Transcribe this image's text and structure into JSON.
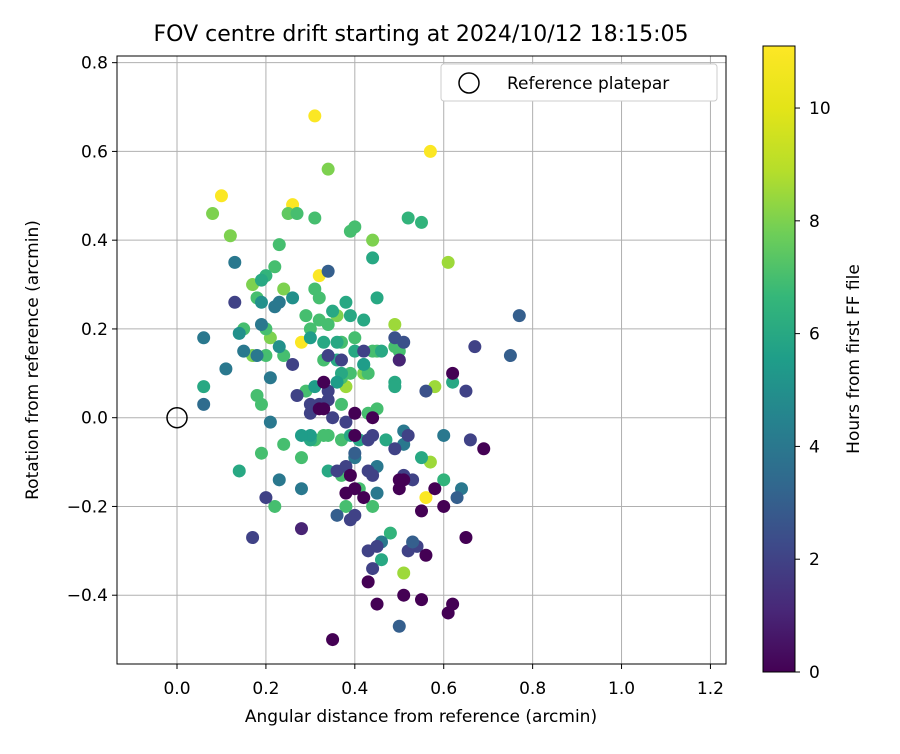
{
  "chart_data": {
    "type": "scatter",
    "title": "FOV centre drift starting at 2024/10/12 18:15:05",
    "xlabel": "Angular distance from reference (arcmin)",
    "ylabel": "Rotation from reference (arcmin)",
    "xlim": [
      -0.135,
      1.235
    ],
    "ylim": [
      -0.555,
      0.815
    ],
    "xticks": [
      0.0,
      0.2,
      0.4,
      0.6,
      0.8,
      1.0,
      1.2
    ],
    "xtick_labels": [
      "0.0",
      "0.2",
      "0.4",
      "0.6",
      "0.8",
      "1.0",
      "1.2"
    ],
    "yticks": [
      -0.4,
      -0.2,
      0.0,
      0.2,
      0.4,
      0.6,
      0.8
    ],
    "ytick_labels": [
      "−0.4",
      "−0.2",
      "0.0",
      "0.2",
      "0.4",
      "0.6",
      "0.8"
    ],
    "grid": true,
    "legend": {
      "position": "top-right",
      "entries": [
        "Reference platepar"
      ]
    },
    "reference_point": {
      "x": 0.0,
      "y": 0.0
    },
    "colorbar": {
      "label": "Hours from first FF file",
      "range": [
        0,
        11.1
      ],
      "ticks": [
        0,
        2,
        4,
        6,
        8,
        10
      ],
      "tick_labels": [
        "0",
        "2",
        "4",
        "6",
        "8",
        "10"
      ],
      "colormap": "viridis"
    },
    "points": [
      [
        0.31,
        0.68,
        11
      ],
      [
        0.57,
        0.6,
        11
      ],
      [
        0.1,
        0.5,
        11
      ],
      [
        0.26,
        0.48,
        11
      ],
      [
        0.32,
        0.32,
        11
      ],
      [
        0.28,
        0.17,
        11
      ],
      [
        0.56,
        -0.18,
        11
      ],
      [
        0.34,
        0.56,
        8
      ],
      [
        0.08,
        0.46,
        8
      ],
      [
        0.12,
        0.41,
        8
      ],
      [
        0.61,
        0.35,
        8.5
      ],
      [
        0.49,
        0.21,
        8.5
      ],
      [
        0.44,
        0.4,
        8
      ],
      [
        0.17,
        0.3,
        8
      ],
      [
        0.58,
        0.07,
        8.5
      ],
      [
        0.38,
        0.07,
        8.5
      ],
      [
        0.51,
        -0.35,
        8.5
      ],
      [
        0.57,
        -0.1,
        8.5
      ],
      [
        0.42,
        0.1,
        8
      ],
      [
        0.21,
        0.18,
        8
      ],
      [
        0.36,
        0.23,
        8
      ],
      [
        0.17,
        0.14,
        8
      ],
      [
        0.24,
        0.29,
        8
      ],
      [
        0.25,
        0.46,
        7.5
      ],
      [
        0.31,
        0.45,
        7
      ],
      [
        0.27,
        0.46,
        7
      ],
      [
        0.4,
        0.43,
        7
      ],
      [
        0.39,
        0.42,
        7
      ],
      [
        0.23,
        0.39,
        7
      ],
      [
        0.22,
        0.34,
        7
      ],
      [
        0.52,
        0.45,
        6.5
      ],
      [
        0.55,
        0.44,
        6.5
      ],
      [
        0.44,
        0.36,
        6
      ],
      [
        0.2,
        0.32,
        6.5
      ],
      [
        0.31,
        0.29,
        7
      ],
      [
        0.32,
        0.27,
        7
      ],
      [
        0.18,
        0.27,
        7
      ],
      [
        0.15,
        0.2,
        7
      ],
      [
        0.2,
        0.2,
        7
      ],
      [
        0.29,
        0.23,
        7
      ],
      [
        0.32,
        0.22,
        7
      ],
      [
        0.34,
        0.21,
        7
      ],
      [
        0.3,
        0.2,
        7
      ],
      [
        0.4,
        0.18,
        7
      ],
      [
        0.44,
        0.15,
        7
      ],
      [
        0.49,
        0.16,
        7
      ],
      [
        0.5,
        0.15,
        7
      ],
      [
        0.37,
        0.17,
        7
      ],
      [
        0.45,
        0.15,
        7
      ],
      [
        0.24,
        0.14,
        7
      ],
      [
        0.2,
        0.14,
        7
      ],
      [
        0.33,
        0.13,
        7
      ],
      [
        0.37,
        0.09,
        7
      ],
      [
        0.39,
        0.1,
        7
      ],
      [
        0.43,
        0.1,
        7
      ],
      [
        0.42,
        0.12,
        7
      ],
      [
        0.29,
        0.06,
        7
      ],
      [
        0.33,
        0.03,
        7
      ],
      [
        0.37,
        0.03,
        7
      ],
      [
        0.43,
        0.01,
        7
      ],
      [
        0.45,
        0.02,
        7
      ],
      [
        0.34,
        -0.04,
        7
      ],
      [
        0.31,
        -0.05,
        7
      ],
      [
        0.33,
        -0.04,
        7
      ],
      [
        0.37,
        -0.05,
        7
      ],
      [
        0.24,
        -0.06,
        7
      ],
      [
        0.28,
        -0.09,
        7
      ],
      [
        0.37,
        -0.13,
        7
      ],
      [
        0.41,
        -0.16,
        7
      ],
      [
        0.38,
        -0.2,
        7
      ],
      [
        0.44,
        -0.2,
        7
      ],
      [
        0.48,
        -0.26,
        6.5
      ],
      [
        0.46,
        -0.32,
        6
      ],
      [
        0.6,
        -0.14,
        6.5
      ],
      [
        0.22,
        -0.2,
        7
      ],
      [
        0.19,
        -0.08,
        7
      ],
      [
        0.19,
        0.03,
        7
      ],
      [
        0.18,
        0.05,
        7
      ],
      [
        0.14,
        -0.12,
        6
      ],
      [
        0.06,
        0.07,
        6
      ],
      [
        0.62,
        0.08,
        6
      ],
      [
        0.55,
        -0.09,
        6
      ],
      [
        0.19,
        0.31,
        6
      ],
      [
        0.38,
        0.26,
        6
      ],
      [
        0.45,
        0.27,
        6
      ],
      [
        0.39,
        0.23,
        6
      ],
      [
        0.42,
        0.22,
        6
      ],
      [
        0.35,
        0.24,
        6
      ],
      [
        0.33,
        0.17,
        6
      ],
      [
        0.36,
        0.17,
        6
      ],
      [
        0.3,
        0.18,
        5.5
      ],
      [
        0.36,
        0.13,
        6
      ],
      [
        0.4,
        0.15,
        6
      ],
      [
        0.46,
        0.15,
        6
      ],
      [
        0.5,
        0.13,
        6
      ],
      [
        0.37,
        0.1,
        6
      ],
      [
        0.49,
        0.08,
        6
      ],
      [
        0.49,
        0.07,
        6
      ],
      [
        0.47,
        -0.05,
        6
      ],
      [
        0.41,
        -0.05,
        6
      ],
      [
        0.39,
        -0.04,
        6
      ],
      [
        0.3,
        -0.05,
        6
      ],
      [
        0.3,
        -0.04,
        5.5
      ],
      [
        0.28,
        -0.04,
        5.5
      ],
      [
        0.34,
        -0.12,
        6
      ],
      [
        0.31,
        0.07,
        5.5
      ],
      [
        0.42,
        0.12,
        5.5
      ],
      [
        0.36,
        0.08,
        5.5
      ],
      [
        0.23,
        0.16,
        5
      ],
      [
        0.14,
        0.19,
        5
      ],
      [
        0.26,
        0.27,
        5
      ],
      [
        0.19,
        0.26,
        5
      ],
      [
        0.13,
        0.35,
        4
      ],
      [
        0.34,
        0.33,
        3
      ],
      [
        0.22,
        0.25,
        4
      ],
      [
        0.23,
        0.26,
        4
      ],
      [
        0.19,
        0.21,
        4
      ],
      [
        0.18,
        0.14,
        4
      ],
      [
        0.15,
        0.15,
        4
      ],
      [
        0.11,
        0.11,
        4
      ],
      [
        0.21,
        0.09,
        4
      ],
      [
        0.06,
        0.18,
        4
      ],
      [
        0.06,
        0.03,
        3.5
      ],
      [
        0.21,
        -0.01,
        4
      ],
      [
        0.23,
        -0.14,
        4
      ],
      [
        0.28,
        -0.16,
        4
      ],
      [
        0.4,
        -0.09,
        4
      ],
      [
        0.45,
        -0.11,
        4
      ],
      [
        0.45,
        -0.17,
        4
      ],
      [
        0.51,
        -0.06,
        4
      ],
      [
        0.51,
        -0.03,
        4
      ],
      [
        0.46,
        -0.28,
        4
      ],
      [
        0.6,
        -0.04,
        4
      ],
      [
        0.64,
        -0.16,
        4
      ],
      [
        0.63,
        -0.18,
        3
      ],
      [
        0.5,
        -0.47,
        3
      ],
      [
        0.77,
        0.23,
        3
      ],
      [
        0.75,
        0.14,
        3
      ],
      [
        0.67,
        0.16,
        2
      ],
      [
        0.65,
        0.06,
        2
      ],
      [
        0.66,
        -0.05,
        2
      ],
      [
        0.56,
        0.06,
        2.5
      ],
      [
        0.49,
        0.18,
        2.5
      ],
      [
        0.51,
        0.17,
        2.5
      ],
      [
        0.42,
        0.15,
        2
      ],
      [
        0.34,
        0.14,
        2
      ],
      [
        0.37,
        0.13,
        2
      ],
      [
        0.5,
        0.13,
        1
      ],
      [
        0.34,
        0.06,
        2
      ],
      [
        0.26,
        0.12,
        2
      ],
      [
        0.27,
        0.05,
        2
      ],
      [
        0.34,
        0.04,
        2
      ],
      [
        0.32,
        0.03,
        2
      ],
      [
        0.3,
        0.03,
        2
      ],
      [
        0.3,
        0.01,
        2
      ],
      [
        0.35,
        0.0,
        2
      ],
      [
        0.38,
        -0.01,
        2
      ],
      [
        0.43,
        -0.05,
        2
      ],
      [
        0.44,
        -0.04,
        2
      ],
      [
        0.49,
        -0.07,
        2
      ],
      [
        0.52,
        -0.04,
        2
      ],
      [
        0.51,
        -0.13,
        2
      ],
      [
        0.53,
        -0.14,
        2
      ],
      [
        0.43,
        -0.12,
        2
      ],
      [
        0.44,
        -0.13,
        2
      ],
      [
        0.38,
        -0.11,
        2
      ],
      [
        0.36,
        -0.12,
        2
      ],
      [
        0.4,
        -0.22,
        2
      ],
      [
        0.39,
        -0.23,
        2
      ],
      [
        0.43,
        -0.3,
        2
      ],
      [
        0.45,
        -0.29,
        2
      ],
      [
        0.44,
        -0.34,
        2
      ],
      [
        0.52,
        -0.3,
        2
      ],
      [
        0.54,
        -0.29,
        2
      ],
      [
        0.53,
        -0.28,
        3
      ],
      [
        0.28,
        -0.25,
        1
      ],
      [
        0.17,
        -0.27,
        2
      ],
      [
        0.2,
        -0.18,
        2
      ],
      [
        0.13,
        0.26,
        2
      ],
      [
        0.36,
        -0.22,
        3
      ],
      [
        0.4,
        -0.08,
        3
      ],
      [
        0.62,
        0.1,
        0
      ],
      [
        0.61,
        -0.44,
        0
      ],
      [
        0.69,
        -0.07,
        0
      ],
      [
        0.6,
        -0.2,
        0
      ],
      [
        0.55,
        -0.21,
        0
      ],
      [
        0.55,
        -0.41,
        0
      ],
      [
        0.51,
        -0.4,
        0
      ],
      [
        0.56,
        -0.31,
        0
      ],
      [
        0.58,
        -0.16,
        0
      ],
      [
        0.5,
        -0.16,
        0
      ],
      [
        0.51,
        -0.14,
        0
      ],
      [
        0.5,
        -0.14,
        0
      ],
      [
        0.4,
        -0.04,
        0
      ],
      [
        0.35,
        -0.5,
        0
      ],
      [
        0.65,
        -0.27,
        0
      ],
      [
        0.62,
        -0.42,
        0
      ],
      [
        0.45,
        -0.42,
        0
      ],
      [
        0.43,
        -0.37,
        0
      ],
      [
        0.42,
        -0.18,
        0
      ],
      [
        0.39,
        -0.13,
        0
      ],
      [
        0.38,
        -0.17,
        0
      ],
      [
        0.4,
        -0.16,
        0
      ],
      [
        0.32,
        0.02,
        0
      ],
      [
        0.33,
        0.02,
        0
      ],
      [
        0.4,
        0.01,
        0
      ],
      [
        0.44,
        0.0,
        0
      ],
      [
        0.33,
        0.08,
        0
      ]
    ]
  }
}
